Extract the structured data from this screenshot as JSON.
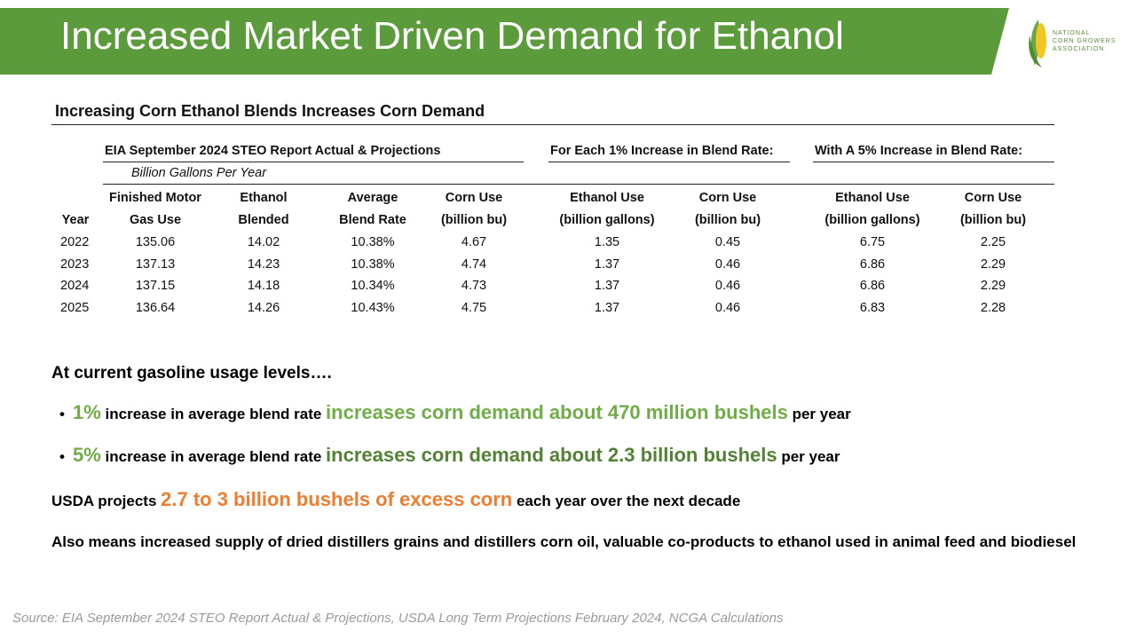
{
  "header": {
    "title": "Increased Market Driven Demand for Ethanol",
    "logo": [
      "NATIONAL",
      "CORN GROWERS",
      "ASSOCIATION"
    ]
  },
  "table": {
    "title": "Increasing Corn Ethanol Blends Increases Corn Demand",
    "groups": [
      "EIA September 2024 STEO Report Actual & Projections",
      "For Each 1% Increase in Blend Rate:",
      "With A 5% Increase in Blend Rate:"
    ],
    "subtitle": "Billion Gallons Per Year",
    "columns": [
      {
        "lines": [
          "Year"
        ]
      },
      {
        "lines": [
          "Finished Motor",
          "Gas Use"
        ]
      },
      {
        "lines": [
          "Ethanol",
          "Blended"
        ]
      },
      {
        "lines": [
          "Average",
          "Blend Rate"
        ]
      },
      {
        "lines": [
          "Corn Use",
          "(billion bu)"
        ]
      },
      {
        "lines": [
          "Ethanol Use",
          "(billion gallons)"
        ]
      },
      {
        "lines": [
          "Corn Use",
          "(billion bu)"
        ]
      },
      {
        "lines": [
          "Ethanol Use",
          "(billion gallons)"
        ]
      },
      {
        "lines": [
          "Corn Use",
          "(billion bu)"
        ]
      }
    ],
    "rows": [
      [
        "2022",
        "135.06",
        "14.02",
        "10.38%",
        "4.67",
        "1.35",
        "0.45",
        "6.75",
        "2.25"
      ],
      [
        "2023",
        "137.13",
        "14.23",
        "10.38%",
        "4.74",
        "1.37",
        "0.46",
        "6.86",
        "2.29"
      ],
      [
        "2024",
        "137.15",
        "14.18",
        "10.34%",
        "4.73",
        "1.37",
        "0.46",
        "6.86",
        "2.29"
      ],
      [
        "2025",
        "136.64",
        "14.26",
        "10.43%",
        "4.75",
        "1.37",
        "0.46",
        "6.83",
        "2.28"
      ]
    ]
  },
  "body": {
    "lead": "At current gasoline usage levels….",
    "bullets": [
      [
        {
          "text": "1%",
          "color": "#70ad47"
        },
        {
          "text": " increase in average blend rate "
        },
        {
          "text": "increases corn demand about 470 million bushels",
          "color": "#70ad47"
        },
        {
          "text": " per year"
        }
      ],
      [
        {
          "text": "5%",
          "color": "#70ad47"
        },
        {
          "text": " increase in average blend rate "
        },
        {
          "text": "increases corn demand about 2.3 billion bushels",
          "color": "#548235"
        },
        {
          "text": " per year"
        }
      ]
    ],
    "paragraphs": [
      [
        {
          "text": "USDA projects "
        },
        {
          "text": "2.7 to 3 billion bushels of excess corn",
          "color": "#ed7d31"
        },
        {
          "text": " each year over the next decade"
        }
      ],
      [
        {
          "text": "Also means increased supply of dried distillers grains and distillers corn oil, valuable co-products to ethanol used in animal feed and biodiesel"
        }
      ]
    ]
  },
  "source": "Source: EIA September 2024 STEO Report Actual & Projections, USDA Long Term Projections February 2024, NCGA Calculations"
}
